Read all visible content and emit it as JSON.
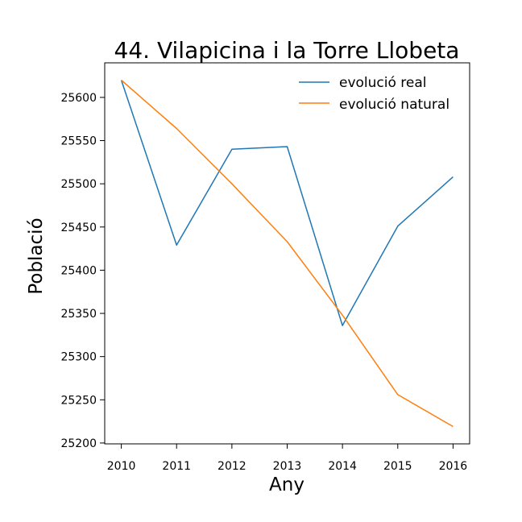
{
  "chart_data": {
    "type": "line",
    "title": "44. Vilapicina i la Torre Llobeta",
    "xlabel": "Any",
    "ylabel": "Població",
    "x": [
      2010,
      2011,
      2012,
      2013,
      2014,
      2015,
      2016
    ],
    "xlim": [
      2009.7,
      2016.3
    ],
    "ylim": [
      25199,
      25640
    ],
    "yticks": [
      25200,
      25250,
      25300,
      25350,
      25400,
      25450,
      25500,
      25550,
      25600
    ],
    "grid": false,
    "legend_position": "top-right",
    "series": [
      {
        "name": "evolució real",
        "color": "#1f77b4",
        "values": [
          25620,
          25429,
          25540,
          25543,
          25336,
          25451,
          25508
        ]
      },
      {
        "name": "evolució natural",
        "color": "#ff7f0e",
        "values": [
          25620,
          25564,
          25500,
          25433,
          25348,
          25256,
          25219
        ]
      }
    ]
  }
}
